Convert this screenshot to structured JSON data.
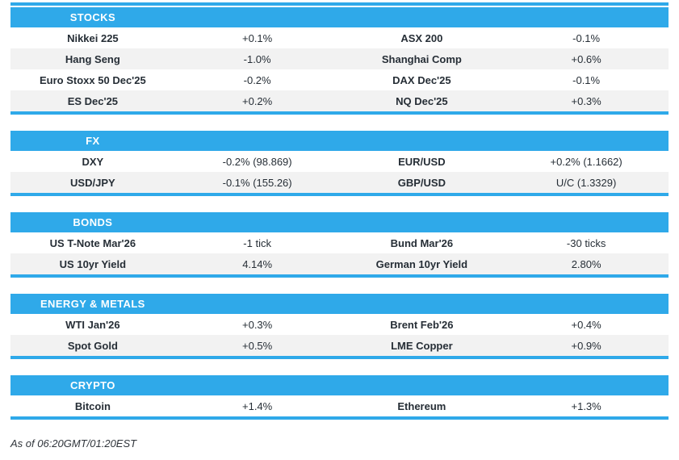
{
  "colors": {
    "accent": "#2fa9e9",
    "alt_row": "#f2f2f2",
    "text": "#262e36",
    "header_text": "#ffffff"
  },
  "sections": [
    {
      "title": "STOCKS",
      "rows": [
        [
          "Nikkei 225",
          "+0.1%",
          "ASX 200",
          "-0.1%"
        ],
        [
          "Hang Seng",
          "-1.0%",
          "Shanghai Comp",
          "+0.6%"
        ],
        [
          "Euro Stoxx 50 Dec'25",
          "-0.2%",
          "DAX Dec'25",
          "-0.1%"
        ],
        [
          "ES Dec'25",
          "+0.2%",
          "NQ Dec'25",
          "+0.3%"
        ]
      ]
    },
    {
      "title": "FX",
      "rows": [
        [
          "DXY",
          "-0.2% (98.869)",
          "EUR/USD",
          "+0.2% (1.1662)"
        ],
        [
          "USD/JPY",
          "-0.1% (155.26)",
          "GBP/USD",
          "U/C (1.3329)"
        ]
      ]
    },
    {
      "title": "BONDS",
      "rows": [
        [
          "US T-Note Mar'26",
          "-1 tick",
          "Bund Mar'26",
          "-30 ticks"
        ],
        [
          "US 10yr Yield",
          "4.14%",
          "German 10yr Yield",
          "2.80%"
        ]
      ]
    },
    {
      "title": "ENERGY & METALS",
      "rows": [
        [
          "WTI Jan'26",
          "+0.3%",
          "Brent Feb'26",
          "+0.4%"
        ],
        [
          "Spot Gold",
          "+0.5%",
          "LME Copper",
          "+0.9%"
        ]
      ]
    },
    {
      "title": "CRYPTO",
      "rows": [
        [
          "Bitcoin",
          "+1.4%",
          "Ethereum",
          "+1.3%"
        ]
      ]
    }
  ],
  "footer": {
    "as_of": "As of 06:20GMT/01:20EST"
  }
}
